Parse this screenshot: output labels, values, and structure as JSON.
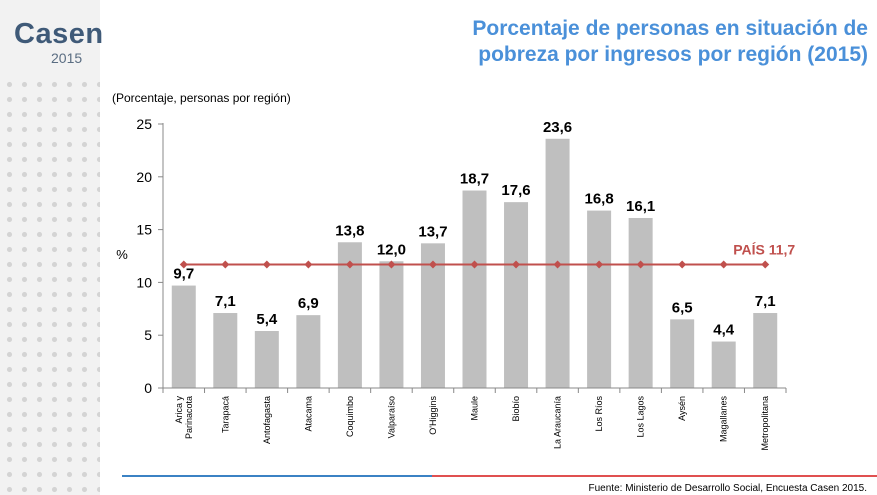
{
  "brand": {
    "name": "Casen",
    "year": "2015"
  },
  "title_lines": [
    "Porcentaje de personas en situación de",
    "pobreza por ingresos por región (2015)"
  ],
  "source": "Fuente: Ministerio de Desarrollo Social, Encuesta Casen 2015.",
  "colors": {
    "bar": "#bfbfbf",
    "reference_line": "#c0504d",
    "title": "#4a90d9",
    "brand": "#3f5a78"
  },
  "chart_data": {
    "type": "bar",
    "title": "Porcentaje de personas en situación de pobreza por ingresos por región (2015)",
    "subtitle": "(Porcentaje, personas por región)",
    "ylabel": "%",
    "xlabel": "",
    "ylim": [
      0,
      25
    ],
    "yticks": [
      0,
      5,
      10,
      15,
      20,
      25
    ],
    "categories": [
      "Arica y Parinacota",
      "Tarapacá",
      "Antofagasta",
      "Atacama",
      "Coquimbo",
      "Valparaíso",
      "O'Higgins",
      "Maule",
      "Biobío",
      "La Araucanía",
      "Los Ríos",
      "Los Lagos",
      "Aysén",
      "Magallanes",
      "Metropolitana"
    ],
    "category_display": [
      [
        "Arica y",
        "Parinacota"
      ],
      [
        "Tarapacá"
      ],
      [
        "Antofagasta"
      ],
      [
        "Atacama"
      ],
      [
        "Coquimbo"
      ],
      [
        "Valparaíso"
      ],
      [
        "O'Higgins"
      ],
      [
        "Maule"
      ],
      [
        "Biobío"
      ],
      [
        "La Araucanía"
      ],
      [
        "Los Ríos"
      ],
      [
        "Los Lagos"
      ],
      [
        "Aysén"
      ],
      [
        "Magallanes"
      ],
      [
        "Metropolitana"
      ]
    ],
    "values": [
      9.7,
      7.1,
      5.4,
      6.9,
      13.8,
      12.0,
      13.7,
      18.7,
      17.6,
      23.6,
      16.8,
      16.1,
      6.5,
      4.4,
      7.1
    ],
    "value_labels": [
      "9,7",
      "7,1",
      "5,4",
      "6,9",
      "13,8",
      "12,0",
      "13,7",
      "18,7",
      "17,6",
      "23,6",
      "16,8",
      "16,1",
      "6,5",
      "4,4",
      "7,1"
    ],
    "reference_line": {
      "value": 11.7,
      "label": "PAÍS 11,7"
    },
    "grid": false,
    "legend": "none"
  }
}
